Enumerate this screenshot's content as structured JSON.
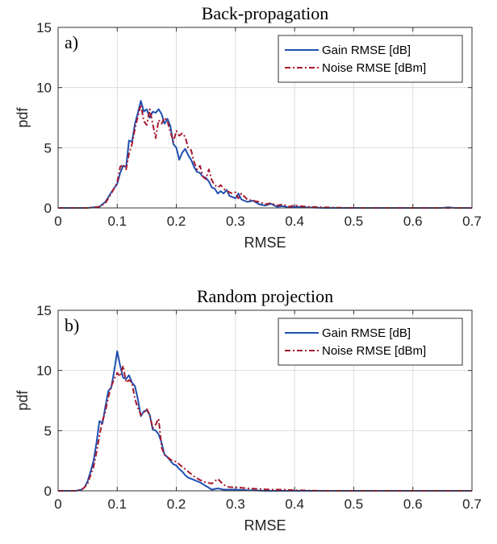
{
  "chart_data": [
    {
      "type": "line",
      "title": "Back-propagation",
      "panel_label": "a)",
      "xlabel": "RMSE",
      "ylabel": "pdf",
      "xlim": [
        0,
        0.7
      ],
      "ylim": [
        0,
        15
      ],
      "xticks": [
        "0",
        "0.1",
        "0.2",
        "0.3",
        "0.4",
        "0.5",
        "0.6",
        "0.7"
      ],
      "yticks": [
        "0",
        "5",
        "10",
        "15"
      ],
      "grid": true,
      "legend_position": "top-right",
      "series": [
        {
          "name": "Gain RMSE [dB]",
          "color": "#1f4fb0",
          "style": "solid",
          "points": [
            [
              0,
              0
            ],
            [
              0.05,
              0
            ],
            [
              0.06,
              0.05
            ],
            [
              0.07,
              0.1
            ],
            [
              0.08,
              0.5
            ],
            [
              0.09,
              1.3
            ],
            [
              0.1,
              2.0
            ],
            [
              0.105,
              2.9
            ],
            [
              0.11,
              3.5
            ],
            [
              0.115,
              3.4
            ],
            [
              0.12,
              5.6
            ],
            [
              0.125,
              5.5
            ],
            [
              0.13,
              7.0
            ],
            [
              0.135,
              7.9
            ],
            [
              0.14,
              8.9
            ],
            [
              0.145,
              8.0
            ],
            [
              0.15,
              8.2
            ],
            [
              0.155,
              7.5
            ],
            [
              0.16,
              8.0
            ],
            [
              0.165,
              7.9
            ],
            [
              0.17,
              8.2
            ],
            [
              0.175,
              7.8
            ],
            [
              0.18,
              7.0
            ],
            [
              0.185,
              7.4
            ],
            [
              0.19,
              6.8
            ],
            [
              0.195,
              5.3
            ],
            [
              0.2,
              5.0
            ],
            [
              0.205,
              4.0
            ],
            [
              0.21,
              4.6
            ],
            [
              0.215,
              4.9
            ],
            [
              0.22,
              4.4
            ],
            [
              0.225,
              4.0
            ],
            [
              0.23,
              3.4
            ],
            [
              0.235,
              3.0
            ],
            [
              0.24,
              2.9
            ],
            [
              0.245,
              2.6
            ],
            [
              0.25,
              2.5
            ],
            [
              0.255,
              2.2
            ],
            [
              0.26,
              1.7
            ],
            [
              0.265,
              1.6
            ],
            [
              0.27,
              1.2
            ],
            [
              0.275,
              1.4
            ],
            [
              0.28,
              1.2
            ],
            [
              0.285,
              1.5
            ],
            [
              0.29,
              1.0
            ],
            [
              0.295,
              0.9
            ],
            [
              0.3,
              0.8
            ],
            [
              0.305,
              1.2
            ],
            [
              0.31,
              0.7
            ],
            [
              0.32,
              0.5
            ],
            [
              0.33,
              0.6
            ],
            [
              0.34,
              0.3
            ],
            [
              0.35,
              0.2
            ],
            [
              0.36,
              0.35
            ],
            [
              0.37,
              0.1
            ],
            [
              0.38,
              0.15
            ],
            [
              0.39,
              0.05
            ],
            [
              0.4,
              0.1
            ],
            [
              0.42,
              0.05
            ],
            [
              0.45,
              0
            ],
            [
              0.5,
              0
            ],
            [
              0.55,
              0
            ],
            [
              0.6,
              0
            ],
            [
              0.65,
              0
            ],
            [
              0.66,
              0.05
            ],
            [
              0.67,
              0
            ],
            [
              0.7,
              0
            ]
          ]
        },
        {
          "name": "Noise RMSE [dBm]",
          "color": "#a6192e",
          "style": "dashdot",
          "points": [
            [
              0,
              0
            ],
            [
              0.05,
              0
            ],
            [
              0.06,
              0.05
            ],
            [
              0.07,
              0.1
            ],
            [
              0.08,
              0.4
            ],
            [
              0.09,
              1.2
            ],
            [
              0.1,
              2.1
            ],
            [
              0.105,
              3.4
            ],
            [
              0.11,
              3.6
            ],
            [
              0.115,
              3.2
            ],
            [
              0.12,
              4.5
            ],
            [
              0.125,
              5.3
            ],
            [
              0.13,
              6.6
            ],
            [
              0.135,
              7.6
            ],
            [
              0.14,
              8.6
            ],
            [
              0.145,
              7.2
            ],
            [
              0.15,
              6.9
            ],
            [
              0.155,
              8.2
            ],
            [
              0.16,
              7.0
            ],
            [
              0.165,
              5.8
            ],
            [
              0.17,
              7.3
            ],
            [
              0.175,
              7.0
            ],
            [
              0.18,
              7.5
            ],
            [
              0.185,
              7.2
            ],
            [
              0.19,
              6.3
            ],
            [
              0.195,
              5.5
            ],
            [
              0.2,
              6.4
            ],
            [
              0.205,
              6.0
            ],
            [
              0.21,
              6.2
            ],
            [
              0.215,
              5.9
            ],
            [
              0.22,
              5.0
            ],
            [
              0.225,
              4.8
            ],
            [
              0.23,
              3.8
            ],
            [
              0.235,
              3.2
            ],
            [
              0.24,
              3.5
            ],
            [
              0.245,
              2.6
            ],
            [
              0.25,
              2.4
            ],
            [
              0.255,
              3.2
            ],
            [
              0.26,
              2.3
            ],
            [
              0.265,
              1.9
            ],
            [
              0.27,
              1.7
            ],
            [
              0.275,
              1.9
            ],
            [
              0.28,
              1.6
            ],
            [
              0.285,
              1.4
            ],
            [
              0.29,
              1.3
            ],
            [
              0.295,
              1.2
            ],
            [
              0.3,
              1.3
            ],
            [
              0.305,
              0.8
            ],
            [
              0.31,
              1.2
            ],
            [
              0.32,
              0.7
            ],
            [
              0.33,
              0.6
            ],
            [
              0.34,
              0.5
            ],
            [
              0.35,
              0.3
            ],
            [
              0.36,
              0.4
            ],
            [
              0.37,
              0.2
            ],
            [
              0.38,
              0.3
            ],
            [
              0.39,
              0.1
            ],
            [
              0.4,
              0.2
            ],
            [
              0.42,
              0.1
            ],
            [
              0.45,
              0.05
            ],
            [
              0.5,
              0
            ],
            [
              0.55,
              0
            ],
            [
              0.6,
              0
            ],
            [
              0.65,
              0
            ],
            [
              0.7,
              0
            ]
          ]
        }
      ]
    },
    {
      "type": "line",
      "title": "Random projection",
      "panel_label": "b)",
      "xlabel": "RMSE",
      "ylabel": "pdf",
      "xlim": [
        0,
        0.7
      ],
      "ylim": [
        0,
        15
      ],
      "xticks": [
        "0",
        "0.1",
        "0.2",
        "0.3",
        "0.4",
        "0.5",
        "0.6",
        "0.7"
      ],
      "yticks": [
        "0",
        "5",
        "10",
        "15"
      ],
      "grid": true,
      "legend_position": "top-right",
      "series": [
        {
          "name": "Gain RMSE [dB]",
          "color": "#1f4fb0",
          "style": "solid",
          "points": [
            [
              0,
              0
            ],
            [
              0.03,
              0
            ],
            [
              0.04,
              0.1
            ],
            [
              0.045,
              0.3
            ],
            [
              0.05,
              0.8
            ],
            [
              0.055,
              1.6
            ],
            [
              0.06,
              2.5
            ],
            [
              0.065,
              4.0
            ],
            [
              0.07,
              5.8
            ],
            [
              0.075,
              5.6
            ],
            [
              0.08,
              7.0
            ],
            [
              0.085,
              8.3
            ],
            [
              0.09,
              8.6
            ],
            [
              0.095,
              10.0
            ],
            [
              0.1,
              11.6
            ],
            [
              0.105,
              10.4
            ],
            [
              0.11,
              9.4
            ],
            [
              0.115,
              9.3
            ],
            [
              0.12,
              9.6
            ],
            [
              0.125,
              9.0
            ],
            [
              0.13,
              8.7
            ],
            [
              0.135,
              7.6
            ],
            [
              0.14,
              6.2
            ],
            [
              0.145,
              6.6
            ],
            [
              0.15,
              6.7
            ],
            [
              0.155,
              6.3
            ],
            [
              0.16,
              5.1
            ],
            [
              0.165,
              5.0
            ],
            [
              0.17,
              4.7
            ],
            [
              0.175,
              4.0
            ],
            [
              0.18,
              3.0
            ],
            [
              0.185,
              2.8
            ],
            [
              0.19,
              2.5
            ],
            [
              0.195,
              2.2
            ],
            [
              0.2,
              2.1
            ],
            [
              0.205,
              1.8
            ],
            [
              0.21,
              1.6
            ],
            [
              0.215,
              1.3
            ],
            [
              0.22,
              1.1
            ],
            [
              0.225,
              1.0
            ],
            [
              0.23,
              0.9
            ],
            [
              0.24,
              0.7
            ],
            [
              0.25,
              0.4
            ],
            [
              0.26,
              0.1
            ],
            [
              0.27,
              0.2
            ],
            [
              0.28,
              0.1
            ],
            [
              0.3,
              0.1
            ],
            [
              0.32,
              0.05
            ],
            [
              0.35,
              0
            ],
            [
              0.4,
              0
            ],
            [
              0.5,
              0
            ],
            [
              0.6,
              0
            ],
            [
              0.7,
              0
            ]
          ]
        },
        {
          "name": "Noise RMSE [dBm]",
          "color": "#a6192e",
          "style": "dashdot",
          "points": [
            [
              0,
              0
            ],
            [
              0.03,
              0
            ],
            [
              0.04,
              0.1
            ],
            [
              0.045,
              0.3
            ],
            [
              0.05,
              0.6
            ],
            [
              0.055,
              1.3
            ],
            [
              0.06,
              2.0
            ],
            [
              0.065,
              3.2
            ],
            [
              0.07,
              4.6
            ],
            [
              0.075,
              5.8
            ],
            [
              0.08,
              6.6
            ],
            [
              0.085,
              7.8
            ],
            [
              0.09,
              8.7
            ],
            [
              0.095,
              9.3
            ],
            [
              0.1,
              9.8
            ],
            [
              0.105,
              9.5
            ],
            [
              0.11,
              10.4
            ],
            [
              0.115,
              9.0
            ],
            [
              0.12,
              9.2
            ],
            [
              0.125,
              9.0
            ],
            [
              0.13,
              7.6
            ],
            [
              0.135,
              6.9
            ],
            [
              0.14,
              6.3
            ],
            [
              0.145,
              6.5
            ],
            [
              0.15,
              6.8
            ],
            [
              0.155,
              6.3
            ],
            [
              0.16,
              5.2
            ],
            [
              0.165,
              5.5
            ],
            [
              0.17,
              6.0
            ],
            [
              0.175,
              3.6
            ],
            [
              0.18,
              3.0
            ],
            [
              0.185,
              2.8
            ],
            [
              0.19,
              2.6
            ],
            [
              0.195,
              2.5
            ],
            [
              0.2,
              2.4
            ],
            [
              0.205,
              2.2
            ],
            [
              0.21,
              2.0
            ],
            [
              0.215,
              1.8
            ],
            [
              0.22,
              1.6
            ],
            [
              0.225,
              1.4
            ],
            [
              0.23,
              1.2
            ],
            [
              0.24,
              0.9
            ],
            [
              0.25,
              0.7
            ],
            [
              0.26,
              0.6
            ],
            [
              0.27,
              1.0
            ],
            [
              0.28,
              0.5
            ],
            [
              0.29,
              0.3
            ],
            [
              0.3,
              0.3
            ],
            [
              0.32,
              0.2
            ],
            [
              0.34,
              0.15
            ],
            [
              0.36,
              0.1
            ],
            [
              0.38,
              0.1
            ],
            [
              0.4,
              0.05
            ],
            [
              0.45,
              0
            ],
            [
              0.5,
              0
            ],
            [
              0.6,
              0
            ],
            [
              0.7,
              0
            ]
          ]
        }
      ]
    }
  ]
}
